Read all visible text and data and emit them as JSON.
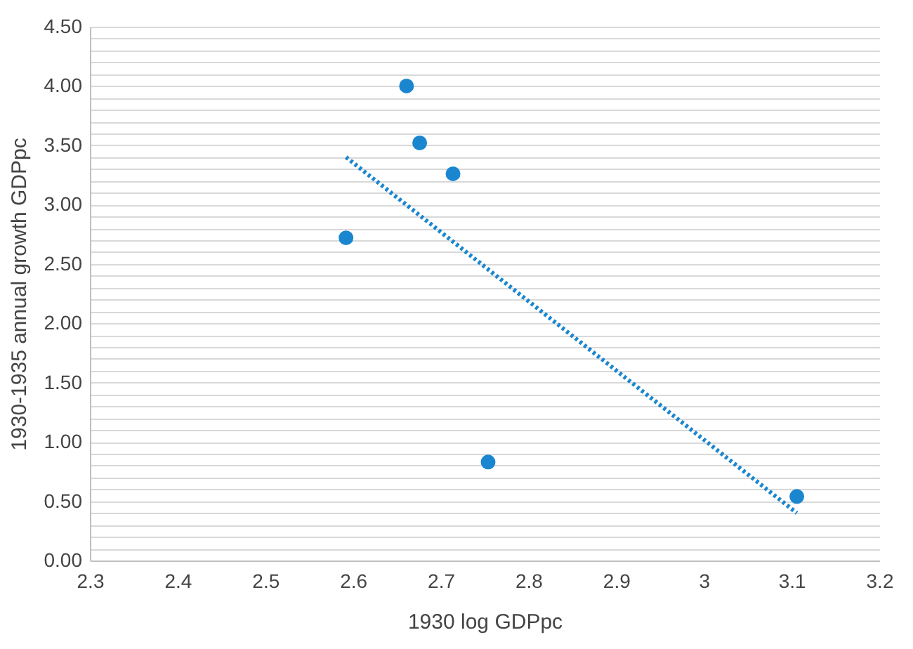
{
  "chart_data": {
    "type": "scatter",
    "xlabel": "1930 log GDPpc",
    "ylabel": "1930-1935 annual growth GDPpc",
    "marker": "circle",
    "grid": "y",
    "xlim": [
      2.3,
      3.2
    ],
    "xticks": [
      2.3,
      2.4,
      2.5,
      2.6,
      2.7,
      2.8,
      2.9,
      {
        "value": 3,
        "label": "3"
      },
      3.1,
      3.2
    ],
    "ylim": [
      0,
      4.5
    ],
    "yticks": [
      {
        "value": 0,
        "label": "0.00"
      },
      {
        "value": 0.1,
        "label": null
      },
      {
        "value": 0.2,
        "label": null
      },
      {
        "value": 0.3,
        "label": null
      },
      {
        "value": 0.4,
        "label": null
      },
      {
        "value": 0.5,
        "label": "0.50"
      },
      {
        "value": 0.6,
        "label": null
      },
      {
        "value": 0.7,
        "label": null
      },
      {
        "value": 0.8,
        "label": null
      },
      {
        "value": 0.9,
        "label": null
      },
      {
        "value": 1,
        "label": "1.00"
      },
      {
        "value": 1.1,
        "label": null
      },
      {
        "value": 1.2,
        "label": null
      },
      {
        "value": 1.3,
        "label": null
      },
      {
        "value": 1.4,
        "label": null
      },
      {
        "value": 1.5,
        "label": "1.50"
      },
      {
        "value": 1.6,
        "label": null
      },
      {
        "value": 1.7,
        "label": null
      },
      {
        "value": 1.8,
        "label": null
      },
      {
        "value": 1.9,
        "label": null
      },
      {
        "value": 2,
        "label": "2.00"
      },
      {
        "value": 2.1,
        "label": null
      },
      {
        "value": 2.2,
        "label": null
      },
      {
        "value": 2.3,
        "label": null
      },
      {
        "value": 2.4,
        "label": null
      },
      {
        "value": 2.5,
        "label": "2.50"
      },
      {
        "value": 2.6,
        "label": null
      },
      {
        "value": 2.7,
        "label": null
      },
      {
        "value": 2.8,
        "label": null
      },
      {
        "value": 2.9,
        "label": null
      },
      {
        "value": 3,
        "label": "3.00"
      },
      {
        "value": 3.1,
        "label": null
      },
      {
        "value": 3.2,
        "label": null
      },
      {
        "value": 3.3,
        "label": null
      },
      {
        "value": 3.4,
        "label": null
      },
      {
        "value": 3.5,
        "label": "3.50"
      },
      {
        "value": 3.6,
        "label": null
      },
      {
        "value": 3.7,
        "label": null
      },
      {
        "value": 3.8,
        "label": null
      },
      {
        "value": 3.9,
        "label": null
      },
      {
        "value": 4,
        "label": "4.00"
      },
      {
        "value": 4.1,
        "label": null
      },
      {
        "value": 4.2,
        "label": null
      },
      {
        "value": 4.3,
        "label": null
      },
      {
        "value": 4.4,
        "label": null
      },
      {
        "value": 4.5,
        "label": "4.50"
      }
    ],
    "series": [
      {
        "color": "#1a86d0",
        "x": [
          2.592,
          2.661,
          2.676,
          2.714,
          2.754,
          3.106
        ],
        "values": [
          2.72,
          4.0,
          3.52,
          3.26,
          0.83,
          0.54
        ]
      },
      {
        "type": "line",
        "color": "#1a86d0",
        "line_style": "dotted",
        "marker": "none",
        "x": [
          2.592,
          3.106
        ],
        "values": [
          3.4,
          0.4
        ]
      }
    ]
  }
}
